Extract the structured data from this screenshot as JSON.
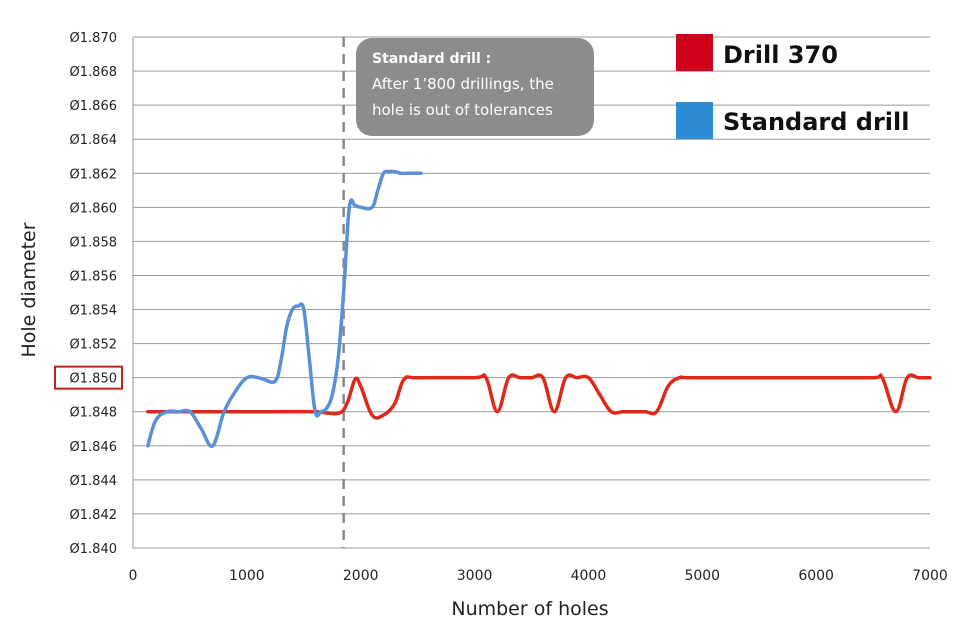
{
  "chart_data": {
    "type": "line",
    "xlabel": "Number of holes",
    "ylabel": "Hole diameter",
    "xlim": [
      0,
      7000
    ],
    "ylim": [
      1.84,
      1.87
    ],
    "x_ticks": [
      "0",
      "1000",
      "2000",
      "3000",
      "4000",
      "5000",
      "6000",
      "7000"
    ],
    "y_ticks": [
      "Ø1.870",
      "Ø1.868",
      "Ø1.866",
      "Ø1.864",
      "Ø1.862",
      "Ø1.860",
      "Ø1.858",
      "Ø1.856",
      "Ø1.854",
      "Ø1.852",
      "Ø1.850",
      "Ø1.848",
      "Ø1.846",
      "Ø1.844",
      "Ø1.842",
      "Ø1.840"
    ],
    "highlighted_tick": "Ø1.850",
    "grid": "horizontal",
    "legend_position": "top-right",
    "reference_line": {
      "x": 1850,
      "style": "dashed"
    },
    "annotation": {
      "title": "Standard drill :",
      "lines": [
        "After 1’800 drillings, the",
        "hole is out of tolerances"
      ]
    },
    "series": [
      {
        "name": "Drill 370",
        "color": "#e0281a",
        "legend_color": "#d0021b",
        "x": [
          130,
          400,
          800,
          1200,
          1600,
          1800,
          1880,
          1950,
          2000,
          2100,
          2200,
          2300,
          2380,
          2500,
          3000,
          3100,
          3200,
          3300,
          3400,
          3500,
          3600,
          3700,
          3800,
          3900,
          4000,
          4100,
          4200,
          4300,
          4400,
          4500,
          4600,
          4700,
          4800,
          4900,
          5500,
          6000,
          6500,
          6580,
          6700,
          6800,
          6900,
          7000
        ],
        "y": [
          1.848,
          1.848,
          1.848,
          1.848,
          1.848,
          1.8479,
          1.8485,
          1.8499,
          1.8495,
          1.8478,
          1.8478,
          1.8485,
          1.8499,
          1.85,
          1.85,
          1.85,
          1.848,
          1.85,
          1.85,
          1.85,
          1.85,
          1.848,
          1.85,
          1.85,
          1.85,
          1.849,
          1.848,
          1.848,
          1.848,
          1.848,
          1.848,
          1.8495,
          1.85,
          1.85,
          1.85,
          1.85,
          1.85,
          1.85,
          1.848,
          1.85,
          1.85,
          1.85
        ]
      },
      {
        "name": "Standard drill",
        "color": "#5b8fd6",
        "legend_color": "#2e8bd6",
        "x": [
          130,
          200,
          300,
          400,
          500,
          600,
          700,
          800,
          900,
          1000,
          1100,
          1150,
          1250,
          1300,
          1350,
          1400,
          1450,
          1500,
          1550,
          1600,
          1650,
          1700,
          1750,
          1800,
          1850,
          1900,
          1950,
          2000,
          2100,
          2150,
          2200,
          2250,
          2300,
          2350,
          2400,
          2500,
          2530
        ],
        "y": [
          1.846,
          1.8475,
          1.848,
          1.848,
          1.848,
          1.847,
          1.846,
          1.848,
          1.8492,
          1.85,
          1.85,
          1.8499,
          1.8498,
          1.851,
          1.853,
          1.854,
          1.8542,
          1.854,
          1.851,
          1.848,
          1.848,
          1.8482,
          1.849,
          1.851,
          1.855,
          1.86,
          1.8601,
          1.86,
          1.86,
          1.861,
          1.862,
          1.8621,
          1.8621,
          1.862,
          1.862,
          1.862,
          1.862
        ]
      }
    ]
  }
}
